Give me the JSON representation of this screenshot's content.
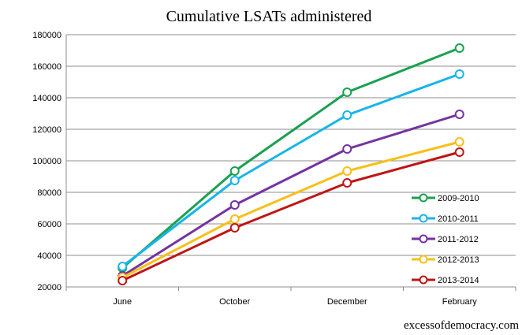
{
  "chart_data": {
    "type": "line",
    "title": "Cumulative LSATs administered",
    "categories": [
      "June",
      "October",
      "December",
      "February"
    ],
    "ylim": [
      20000,
      180000
    ],
    "yticks": [
      20000,
      40000,
      60000,
      80000,
      100000,
      120000,
      140000,
      160000,
      180000
    ],
    "grid": true,
    "legend_position": "right",
    "series": [
      {
        "name": "2009-2010",
        "color": "#1aa150",
        "values": [
          32000,
          93500,
          143500,
          171500
        ]
      },
      {
        "name": "2010-2011",
        "color": "#18b4e8",
        "values": [
          33000,
          87500,
          129000,
          155000
        ]
      },
      {
        "name": "2011-2012",
        "color": "#7432a0",
        "values": [
          27000,
          72000,
          107500,
          129500
        ]
      },
      {
        "name": "2012-2013",
        "color": "#f7c018",
        "values": [
          26000,
          63000,
          93500,
          112000
        ]
      },
      {
        "name": "2013-2014",
        "color": "#c01515",
        "values": [
          24000,
          57500,
          86000,
          105500
        ]
      }
    ]
  },
  "credit": "excessofdemocracy.com"
}
